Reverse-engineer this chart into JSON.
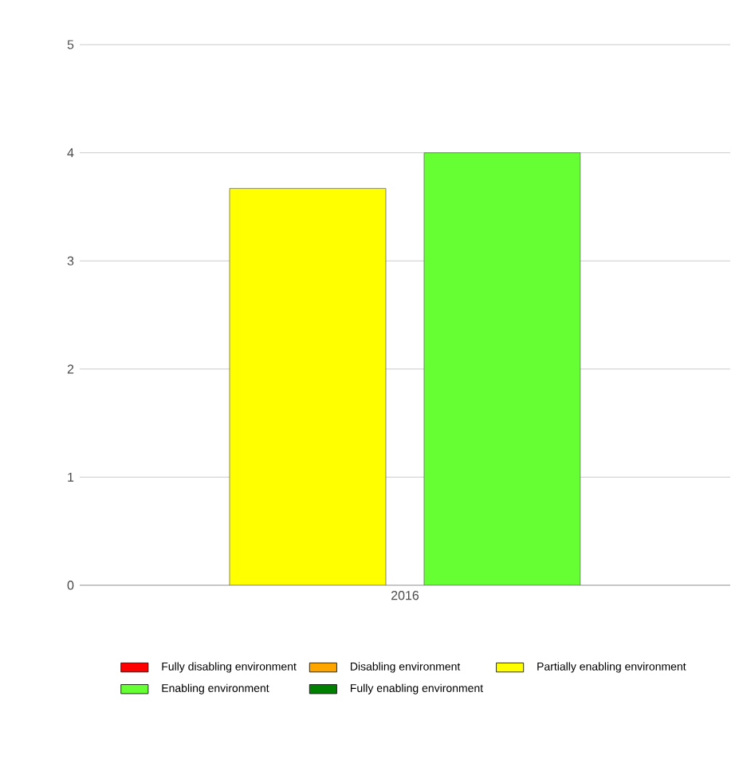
{
  "chart_data": {
    "type": "bar",
    "categories": [
      "2016"
    ],
    "series": [
      {
        "name": "Fully disabling environment",
        "color": "#ff0000",
        "values": [
          null
        ]
      },
      {
        "name": "Disabling environment",
        "color": "#ffa500",
        "values": [
          null
        ]
      },
      {
        "name": "Partially enabling environment",
        "color": "#ffff00",
        "values": [
          3.67
        ]
      },
      {
        "name": "Enabling environment",
        "color": "#66ff33",
        "values": [
          4
        ]
      },
      {
        "name": "Fully enabling environment",
        "color": "#008000",
        "values": [
          null
        ]
      }
    ],
    "ylim": [
      0,
      5
    ],
    "yticks": [
      0,
      1,
      2,
      3,
      4,
      5
    ],
    "grid": "y",
    "legend": "bottom"
  }
}
